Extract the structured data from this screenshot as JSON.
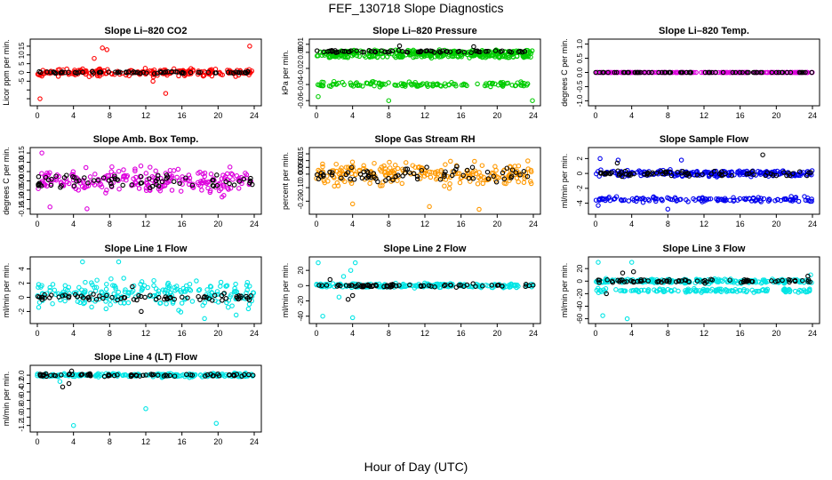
{
  "page": {
    "title": "FEF_130718  Slope Diagnostics",
    "xlabel": "Hour of Day (UTC)"
  },
  "chart_data": [
    {
      "type": "scatter",
      "title": "Slope Li–820 CO2",
      "ylabel": "Licor ppm per min.",
      "xlim": [
        0,
        24
      ],
      "ylim": [
        -17,
        17
      ],
      "xticks": [
        0,
        4,
        8,
        12,
        16,
        20,
        24
      ],
      "yticks": [
        -15,
        -10,
        -5,
        0,
        5,
        10,
        15
      ],
      "ytick_labels": [
        "",
        "",
        "-5",
        "0",
        "5",
        "10",
        "15"
      ],
      "colors": {
        "main": "#ff0000",
        "alt": "#000000"
      },
      "series": [
        {
          "color": "red",
          "values_summary": "scatter around 0 mostly within ±5, outliers up to 15 and down to -15",
          "bands": [
            {
              "y": 0,
              "spread": 3
            }
          ],
          "outliers": [
            [
              0.3,
              -15
            ],
            [
              7.2,
              14
            ],
            [
              7.7,
              13
            ],
            [
              23.5,
              15
            ],
            [
              6.3,
              8
            ],
            [
              12.8,
              -5
            ],
            [
              14.2,
              -12
            ]
          ]
        },
        {
          "color": "black",
          "bands": [
            {
              "y": 0,
              "spread": 0.8
            }
          ]
        }
      ]
    },
    {
      "type": "scatter",
      "title": "Slope Li–820 Pressure",
      "ylabel": "kPa per min.",
      "xlim": [
        0,
        24
      ],
      "ylim": [
        -0.062,
        0.012
      ],
      "xticks": [
        0,
        4,
        8,
        12,
        16,
        20,
        24
      ],
      "yticks": [
        -0.06,
        -0.04,
        -0.02,
        0.0,
        0.01
      ],
      "ytick_labels": [
        "-0.06",
        "-0.04",
        "-0.02",
        "0.00",
        "0.01"
      ],
      "colors": {
        "main": "#00cc00",
        "alt": "#000000"
      },
      "series": [
        {
          "color": "green",
          "bands": [
            {
              "y": 0.0,
              "spread": 0.004
            },
            {
              "y": -0.005,
              "spread": 0.003
            },
            {
              "y": -0.04,
              "spread": 0.005
            }
          ],
          "outliers": [
            [
              8,
              -0.06
            ],
            [
              23.9,
              -0.06
            ],
            [
              0.2,
              -0.055
            ]
          ]
        },
        {
          "color": "black",
          "bands": [
            {
              "y": 0.001,
              "spread": 0.002
            }
          ],
          "outliers": [
            [
              9.2,
              0.008
            ],
            [
              17.4,
              0.007
            ]
          ]
        }
      ]
    },
    {
      "type": "scatter",
      "title": "Slope Li–820 Temp.",
      "ylabel": "degrees C per min.",
      "xlim": [
        0,
        24
      ],
      "ylim": [
        -1.05,
        1.05
      ],
      "xticks": [
        0,
        4,
        8,
        12,
        16,
        20,
        24
      ],
      "yticks": [
        -1.0,
        -0.5,
        0.0,
        0.5,
        1.0
      ],
      "ytick_labels": [
        "-1.0",
        "-0.5",
        "0.0",
        "0.5",
        "1.0"
      ],
      "colors": {
        "main": "#dd00dd",
        "alt": "#000000"
      },
      "series": [
        {
          "color": "magenta",
          "bands": [
            {
              "y": 0.0,
              "spread": 0.0
            }
          ]
        },
        {
          "color": "black",
          "bands": [
            {
              "y": 0.0,
              "spread": 0.0
            }
          ]
        }
      ]
    },
    {
      "type": "scatter",
      "title": "Slope Amb. Box Temp.",
      "ylabel": "degrees C per min.",
      "xlim": [
        0,
        24
      ],
      "ylim": [
        -0.16,
        0.16
      ],
      "xticks": [
        0,
        4,
        8,
        12,
        16,
        20,
        24
      ],
      "yticks": [
        -0.15,
        -0.1,
        -0.05,
        0.0,
        0.05,
        0.1,
        0.15
      ],
      "ytick_labels": [
        "-0.15",
        "-0.10",
        "-0.05",
        "0.00",
        "0.05",
        "0.10",
        "0.15"
      ],
      "colors": {
        "main": "#dd00dd",
        "alt": "#000000"
      },
      "series": [
        {
          "color": "magenta",
          "bands": [
            {
              "y": 0.0,
              "spread": 0.1
            }
          ],
          "outliers": [
            [
              0.5,
              0.15
            ],
            [
              5.5,
              -0.15
            ],
            [
              1.4,
              -0.14
            ]
          ]
        },
        {
          "color": "black",
          "bands": [
            {
              "y": 0.0,
              "spread": 0.06
            }
          ]
        }
      ]
    },
    {
      "type": "scatter",
      "title": "Slope Gas Stream RH",
      "ylabel": "percent per min.",
      "xlim": [
        0,
        24
      ],
      "ylim": [
        -0.27,
        0.17
      ],
      "xticks": [
        0,
        4,
        8,
        12,
        16,
        20,
        24
      ],
      "yticks": [
        -0.2,
        -0.1,
        0.0,
        0.05,
        0.1,
        0.15
      ],
      "ytick_labels": [
        "-0.20",
        "-0.10",
        "0.00",
        "0.05",
        "0.10",
        "0.15"
      ],
      "colors": {
        "main": "#ff9900",
        "alt": "#000000"
      },
      "series": [
        {
          "color": "orange",
          "bands": [
            {
              "y": 0.0,
              "spread": 0.12
            }
          ],
          "outliers": [
            [
              18,
              -0.26
            ],
            [
              12.5,
              -0.24
            ],
            [
              4,
              -0.22
            ]
          ]
        },
        {
          "color": "black",
          "bands": [
            {
              "y": 0.0,
              "spread": 0.08
            }
          ]
        }
      ]
    },
    {
      "type": "scatter",
      "title": "Slope Sample Flow",
      "ylabel": "ml/min per min.",
      "xlim": [
        0,
        24
      ],
      "ylim": [
        -5,
        3
      ],
      "xticks": [
        0,
        4,
        8,
        12,
        16,
        20,
        24
      ],
      "yticks": [
        -4,
        -2,
        0,
        2
      ],
      "ytick_labels": [
        "-4",
        "-2",
        "0",
        "2"
      ],
      "colors": {
        "main": "#0000ee",
        "alt": "#000000"
      },
      "series": [
        {
          "color": "blue",
          "bands": [
            {
              "y": 0.0,
              "spread": 0.6
            },
            {
              "y": -3.5,
              "spread": 0.5
            }
          ],
          "outliers": [
            [
              8,
              -4.8
            ],
            [
              0.5,
              2
            ],
            [
              2.5,
              1.8
            ],
            [
              9.5,
              1.8
            ],
            [
              0.3,
              -4.3
            ]
          ]
        },
        {
          "color": "black",
          "bands": [
            {
              "y": 0.0,
              "spread": 0.5
            }
          ],
          "outliers": [
            [
              18.5,
              2.5
            ],
            [
              2.4,
              1.4
            ]
          ]
        }
      ]
    },
    {
      "type": "scatter",
      "title": "Slope Line 1 Flow",
      "ylabel": "ml/min per min.",
      "xlim": [
        0,
        24
      ],
      "ylim": [
        -3.2,
        5.2
      ],
      "xticks": [
        0,
        4,
        8,
        12,
        16,
        20,
        24
      ],
      "yticks": [
        -2,
        0,
        2,
        4
      ],
      "ytick_labels": [
        "-2",
        "0",
        "2",
        "4"
      ],
      "colors": {
        "main": "#00e5e5",
        "alt": "#000000"
      },
      "series": [
        {
          "color": "cyan",
          "bands": [
            {
              "y": 0.5,
              "spread": 3.0
            }
          ],
          "outliers": [
            [
              5,
              5
            ],
            [
              9,
              5
            ],
            [
              18.5,
              -3
            ],
            [
              22,
              -2.5
            ]
          ]
        },
        {
          "color": "black",
          "bands": [
            {
              "y": 0.0,
              "spread": 0.7
            }
          ],
          "outliers": [
            [
              11.5,
              -2
            ],
            [
              10.5,
              1.5
            ]
          ]
        }
      ]
    },
    {
      "type": "scatter",
      "title": "Slope Line 2 Flow",
      "ylabel": "ml/min per min.",
      "xlim": [
        0,
        24
      ],
      "ylim": [
        -45,
        33
      ],
      "xticks": [
        0,
        4,
        8,
        12,
        16,
        20,
        24
      ],
      "yticks": [
        -40,
        -20,
        0,
        20
      ],
      "ytick_labels": [
        "-40",
        "-20",
        "0",
        "20"
      ],
      "colors": {
        "main": "#00e5e5",
        "alt": "#000000"
      },
      "series": [
        {
          "color": "cyan",
          "bands": [
            {
              "y": 0,
              "spread": 4
            }
          ],
          "outliers": [
            [
              0.2,
              30
            ],
            [
              4.3,
              30
            ],
            [
              3.8,
              20
            ],
            [
              0.7,
              -40
            ],
            [
              4,
              -42
            ],
            [
              2.5,
              -15
            ],
            [
              3,
              12
            ]
          ]
        },
        {
          "color": "black",
          "bands": [
            {
              "y": 0,
              "spread": 3
            }
          ],
          "outliers": [
            [
              3.5,
              -18
            ],
            [
              4,
              -13
            ],
            [
              1.5,
              8
            ]
          ]
        }
      ]
    },
    {
      "type": "scatter",
      "title": "Slope Line 3 Flow",
      "ylabel": "ml/min per min.",
      "xlim": [
        0,
        24
      ],
      "ylim": [
        -62,
        33
      ],
      "xticks": [
        0,
        4,
        8,
        12,
        16,
        20,
        24
      ],
      "yticks": [
        -60,
        -40,
        -20,
        0,
        20
      ],
      "ytick_labels": [
        "-60",
        "-40",
        "-20",
        "0",
        "20"
      ],
      "colors": {
        "main": "#00e5e5",
        "alt": "#000000"
      },
      "series": [
        {
          "color": "cyan",
          "bands": [
            {
              "y": 0,
              "spread": 5
            },
            {
              "y": -15,
              "spread": 4
            }
          ],
          "outliers": [
            [
              0.3,
              30
            ],
            [
              4,
              30
            ],
            [
              3.5,
              -60
            ],
            [
              0.8,
              -55
            ],
            [
              23.8,
              10
            ]
          ]
        },
        {
          "color": "black",
          "bands": [
            {
              "y": 0,
              "spread": 4
            }
          ],
          "outliers": [
            [
              1.2,
              -20
            ],
            [
              3,
              13
            ],
            [
              4.2,
              15
            ],
            [
              23.5,
              8
            ]
          ]
        }
      ]
    },
    {
      "type": "scatter",
      "title": "Slope Line 4 (LT) Flow",
      "ylabel": "ml/min per min.",
      "xlim": [
        0,
        24
      ],
      "ylim": [
        -1.27,
        0.15
      ],
      "xticks": [
        0,
        4,
        8,
        12,
        16,
        20,
        24
      ],
      "yticks": [
        -1.2,
        -1.0,
        -0.8,
        -0.6,
        -0.4,
        -0.2,
        0.0
      ],
      "ytick_labels": [
        "-1.2",
        "-1.0",
        "-0.8",
        "-0.6",
        "-0.4",
        "-0.2",
        "0.0"
      ],
      "colors": {
        "main": "#00e5e5",
        "alt": "#000000"
      },
      "series": [
        {
          "color": "cyan",
          "bands": [
            {
              "y": 0.0,
              "spread": 0.06
            }
          ],
          "outliers": [
            [
              4,
              -1.2
            ],
            [
              12,
              -0.8
            ],
            [
              19.8,
              -1.15
            ],
            [
              2.5,
              -0.15
            ]
          ]
        },
        {
          "color": "black",
          "bands": [
            {
              "y": 0.0,
              "spread": 0.05
            }
          ],
          "outliers": [
            [
              2.8,
              -0.28
            ],
            [
              3.8,
              0.1
            ],
            [
              3.5,
              -0.2
            ]
          ]
        }
      ]
    }
  ]
}
